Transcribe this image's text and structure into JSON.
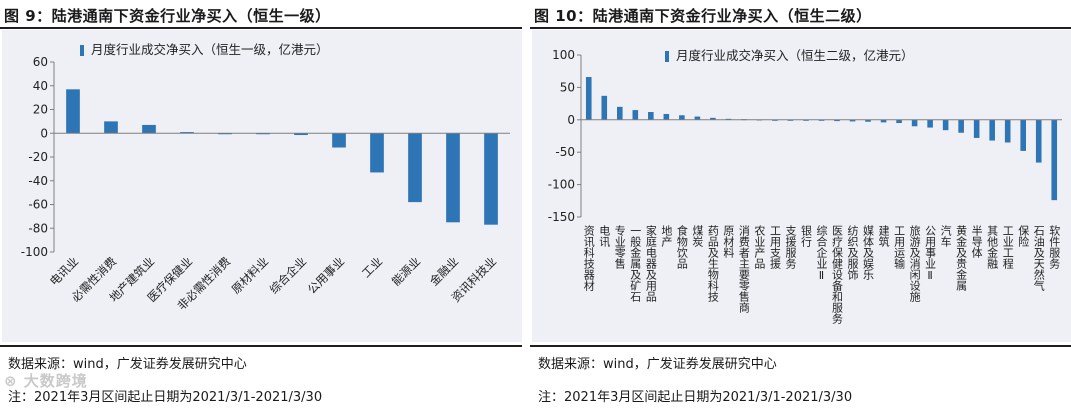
{
  "watermark": "大数跨境",
  "charts": [
    {
      "title": "图 9：陆港通南下资金行业净买入（恒生一级）",
      "source": "数据来源：wind，广发证券发展研究中心",
      "note": "注：2021年3月区间起止日期为2021/3/1-2021/3/30"
    },
    {
      "title": "图 10：陆港通南下资金行业净买入（恒生二级）",
      "source": "数据来源：wind，广发证券发展研究中心",
      "note": "注：2021年3月区间起止日期为2021/3/1-2021/3/30"
    }
  ],
  "chart_data": [
    {
      "type": "bar",
      "title": "陆港通南下资金行业净买入（恒生一级）",
      "legend": "月度行业成交净买入（恒生一级，亿港元）",
      "legend_position": "top-left",
      "color": "#2e75b6",
      "xlabel": "",
      "ylabel": "",
      "ylim": [
        -100,
        60
      ],
      "yticks": [
        -100,
        -80,
        -60,
        -40,
        -20,
        0,
        20,
        40,
        60
      ],
      "categories": [
        "电讯业",
        "必需性消费",
        "地产建筑业",
        "医疗保健业",
        "非必需性消费",
        "原材料业",
        "综合企业",
        "公用事业",
        "工业",
        "能源业",
        "金融业",
        "资讯科技业"
      ],
      "values": [
        37,
        10,
        7,
        1,
        0,
        0,
        -1.5,
        -12,
        -33,
        -58,
        -75,
        -77
      ]
    },
    {
      "type": "bar",
      "title": "陆港通南下资金行业净买入（恒生二级）",
      "legend": "月度行业成交净买入（恒生二级，亿港元）",
      "legend_position": "top-center",
      "color": "#2e75b6",
      "xlabel": "",
      "ylabel": "",
      "ylim": [
        -150,
        100
      ],
      "yticks": [
        -150,
        -100,
        -50,
        0,
        50,
        100
      ],
      "categories": [
        "资讯科技器材",
        "电讯",
        "专业零售",
        "一般金属及矿石",
        "家庭电器及用品",
        "地产",
        "食物饮品",
        "煤炭",
        "药品及生物科技",
        "原材料",
        "消费者主要零售商",
        "农业产品",
        "工用支援",
        "支援服务",
        "银行",
        "综合企业Ⅱ",
        "医疗保健设备和服务",
        "纺织及服饰",
        "媒体及娱乐",
        "建筑",
        "工用运输",
        "旅游及消闲设施",
        "公用事业Ⅱ",
        "汽车",
        "黄金及贵金属",
        "半导体",
        "其他金融",
        "工业工程",
        "保险",
        "石油及天然气",
        "软件服务"
      ],
      "values": [
        66,
        37,
        20,
        15,
        12,
        9,
        7,
        5,
        3,
        1.5,
        1,
        0.5,
        0,
        -0.5,
        -1,
        -1.5,
        -2,
        -2.5,
        -3,
        -4,
        -5,
        -10,
        -12,
        -16,
        -20,
        -28,
        -32,
        -35,
        -48,
        -66,
        -124
      ]
    }
  ]
}
